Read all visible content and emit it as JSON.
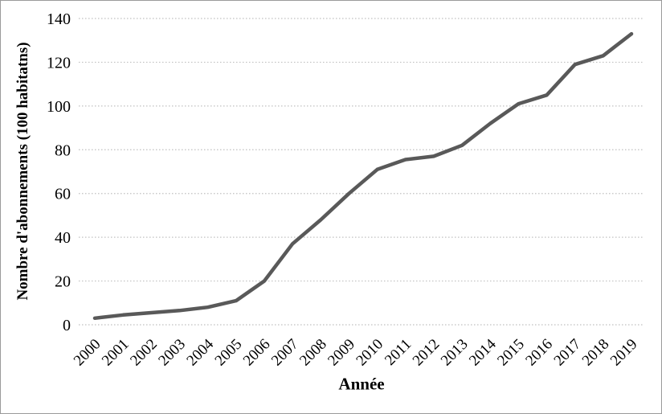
{
  "figure": {
    "background": "#ffffff",
    "border_color": "#9a9a9a"
  },
  "chart_data": {
    "type": "line",
    "title": "",
    "xlabel": "Année",
    "ylabel": "Nombre d'abonnements (100 habitatns)",
    "categories": [
      "2000",
      "2001",
      "2002",
      "2003",
      "2004",
      "2005",
      "2006",
      "2007",
      "2008",
      "2009",
      "2010",
      "2011",
      "2012",
      "2013",
      "2014",
      "2015",
      "2016",
      "2017",
      "2018",
      "2019"
    ],
    "series": [
      {
        "name": "Nombre d'abonnements",
        "values": [
          3,
          4.5,
          5.5,
          6.5,
          8,
          11,
          20,
          37,
          48,
          60,
          71,
          75.5,
          77,
          82,
          92,
          101,
          105,
          119,
          123,
          133
        ]
      }
    ],
    "ylim": [
      0,
      140
    ],
    "yticks": [
      0,
      20,
      40,
      60,
      80,
      100,
      120,
      140
    ],
    "grid": "horizontal-dotted",
    "legend_position": "none",
    "line_color": "#595959",
    "gridline_color": "#c0c0c0",
    "tick_label_color": "#000000"
  }
}
